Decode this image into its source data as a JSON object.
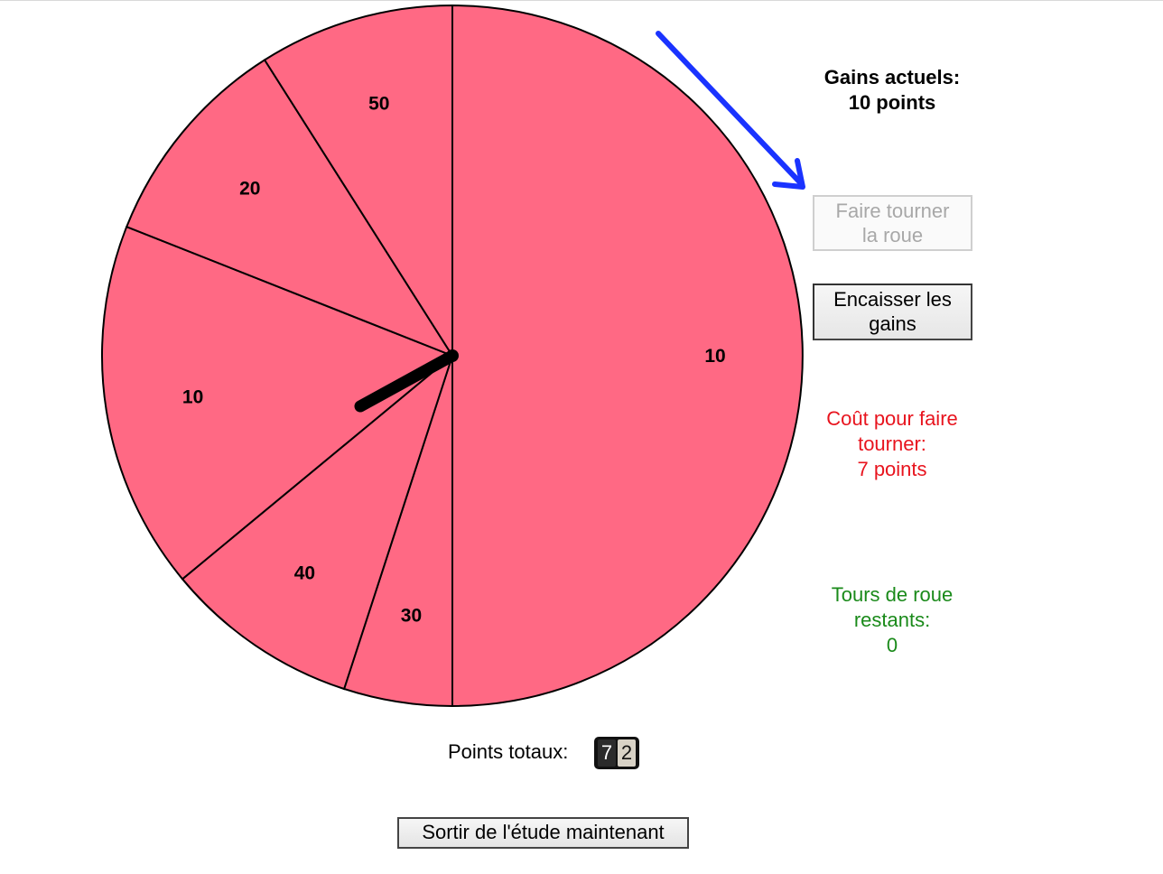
{
  "wheel": {
    "segment_color": "#ff6984",
    "segments": [
      {
        "label": "10",
        "value": 10,
        "share": 0.5
      },
      {
        "label": "30",
        "value": 30,
        "share": 0.05
      },
      {
        "label": "40",
        "value": 40,
        "share": 0.09
      },
      {
        "label": "10",
        "value": 10,
        "share": 0.17
      },
      {
        "label": "20",
        "value": 20,
        "share": 0.1
      },
      {
        "label": "50",
        "value": 50,
        "share": 0.09
      }
    ]
  },
  "status": {
    "gains_line1": "Gains actuels:",
    "gains_line2": "10 points",
    "cost_line1": "Coût pour faire",
    "cost_line2": "tourner:",
    "cost_line3": "7 points",
    "turns_line1": "Tours de roue",
    "turns_line2": "restants:",
    "turns_line3": "0",
    "cost_color": "#e8141e",
    "turns_color": "#1a8a1a",
    "arrow_color": "#1a33ff"
  },
  "buttons": {
    "spin_line1": "Faire tourner",
    "spin_line2": "la roue",
    "cash_line1": "Encaisser les",
    "cash_line2": "gains",
    "exit": "Sortir de l'étude maintenant"
  },
  "total": {
    "label": "Points totaux:",
    "digits": [
      "7",
      "2"
    ]
  }
}
